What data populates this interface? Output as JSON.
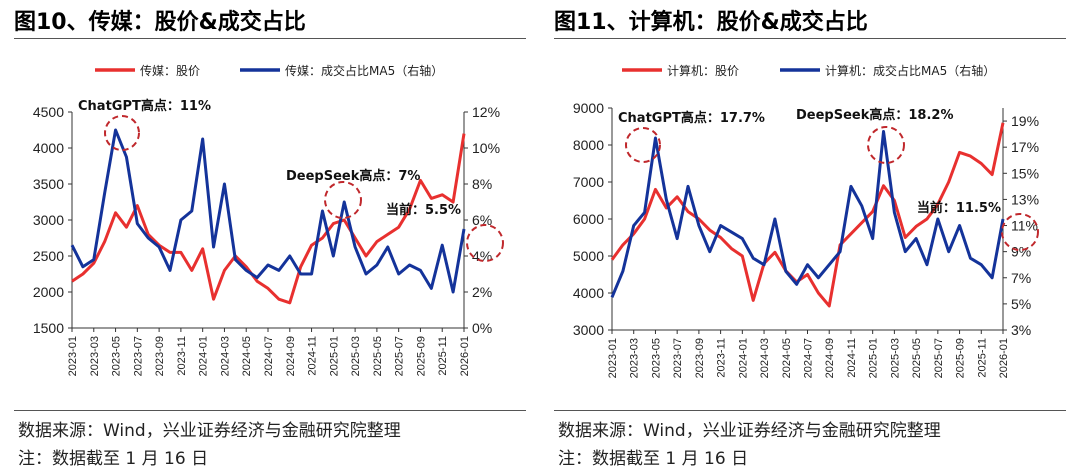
{
  "colors": {
    "stock": "#e8302f",
    "share": "#14339a",
    "annotation": "#c0282c"
  },
  "chart_data": [
    {
      "type": "line",
      "title": "图10、传媒：股价&成交占比",
      "x_ticks": [
        "2023-01",
        "2023-03",
        "2023-05",
        "2023-07",
        "2023-09",
        "2023-11",
        "2024-01",
        "2024-03",
        "2024-05",
        "2024-07",
        "2024-09",
        "2024-11",
        "2025-01",
        "2025-03",
        "2025-05",
        "2025-07",
        "2025-09",
        "2025-11",
        "2026-01"
      ],
      "x": [
        "2023-01",
        "2023-02",
        "2023-03",
        "2023-04",
        "2023-05",
        "2023-06",
        "2023-07",
        "2023-08",
        "2023-09",
        "2023-10",
        "2023-11",
        "2023-12",
        "2024-01",
        "2024-02",
        "2024-03",
        "2024-04",
        "2024-05",
        "2024-06",
        "2024-07",
        "2024-08",
        "2024-09",
        "2024-10",
        "2024-11",
        "2024-12",
        "2025-01",
        "2025-02",
        "2025-03",
        "2025-04",
        "2025-05",
        "2025-06",
        "2025-07",
        "2025-08",
        "2025-09",
        "2025-10",
        "2025-11",
        "2025-12",
        "2026-01"
      ],
      "left_axis": {
        "ylim": [
          1500,
          4500
        ],
        "ticks": [
          "1500",
          "2000",
          "2500",
          "3000",
          "3500",
          "4000",
          "4500"
        ]
      },
      "right_axis": {
        "ylim": [
          0,
          12
        ],
        "ticks": [
          "0%",
          "2%",
          "4%",
          "6%",
          "8%",
          "10%",
          "12%"
        ]
      },
      "series": [
        {
          "name": "传媒：股价",
          "axis": "left",
          "values": [
            2150,
            2250,
            2400,
            2700,
            3100,
            2900,
            3200,
            2800,
            2650,
            2550,
            2550,
            2300,
            2600,
            1900,
            2300,
            2500,
            2350,
            2150,
            2050,
            1900,
            1850,
            2350,
            2650,
            2750,
            2950,
            3000,
            2750,
            2500,
            2700,
            2800,
            2900,
            3150,
            3550,
            3300,
            3350,
            3250,
            4200
          ]
        },
        {
          "name": "传媒：成交占比MA5（右轴）",
          "axis": "right",
          "values": [
            4.6,
            3.4,
            3.8,
            7.5,
            11.0,
            9.5,
            5.8,
            5.0,
            4.5,
            3.2,
            6.0,
            6.5,
            10.5,
            4.5,
            8.0,
            3.8,
            3.2,
            2.8,
            3.5,
            3.2,
            4.0,
            3.0,
            3.0,
            6.5,
            4.0,
            7.0,
            4.5,
            3.0,
            3.5,
            4.5,
            3.0,
            3.5,
            3.2,
            2.2,
            4.6,
            2.0,
            5.5
          ]
        }
      ],
      "annotations": [
        "ChatGPT高点：11%",
        "DeepSeek高点：7%",
        "当前：5.5%"
      ]
    },
    {
      "type": "line",
      "title": "图11、计算机：股价&成交占比",
      "x_ticks": [
        "2023-01",
        "2023-03",
        "2023-05",
        "2023-07",
        "2023-09",
        "2023-11",
        "2024-01",
        "2024-03",
        "2024-05",
        "2024-07",
        "2024-09",
        "2024-11",
        "2025-01",
        "2025-03",
        "2025-05",
        "2025-07",
        "2025-09",
        "2025-11",
        "2026-01"
      ],
      "x": [
        "2023-01",
        "2023-02",
        "2023-03",
        "2023-04",
        "2023-05",
        "2023-06",
        "2023-07",
        "2023-08",
        "2023-09",
        "2023-10",
        "2023-11",
        "2023-12",
        "2024-01",
        "2024-02",
        "2024-03",
        "2024-04",
        "2024-05",
        "2024-06",
        "2024-07",
        "2024-08",
        "2024-09",
        "2024-10",
        "2024-11",
        "2024-12",
        "2025-01",
        "2025-02",
        "2025-03",
        "2025-04",
        "2025-05",
        "2025-06",
        "2025-07",
        "2025-08",
        "2025-09",
        "2025-10",
        "2025-11",
        "2025-12",
        "2026-01"
      ],
      "left_axis": {
        "ylim": [
          3000,
          9000
        ],
        "ticks": [
          "3000",
          "4000",
          "5000",
          "6000",
          "7000",
          "8000",
          "9000"
        ]
      },
      "right_axis": {
        "ylim": [
          3,
          20
        ],
        "ticks": [
          "3%",
          "5%",
          "7%",
          "9%",
          "11%",
          "13%",
          "15%",
          "17%",
          "19%"
        ]
      },
      "series": [
        {
          "name": "计算机：股价",
          "axis": "left",
          "values": [
            4900,
            5300,
            5600,
            6000,
            6800,
            6300,
            6600,
            6200,
            6000,
            5700,
            5500,
            5200,
            5000,
            3800,
            4800,
            5100,
            4600,
            4300,
            4500,
            4000,
            3650,
            5300,
            5600,
            5900,
            6200,
            6900,
            6500,
            5500,
            5800,
            6000,
            6400,
            7000,
            7800,
            7700,
            7500,
            7200,
            8600
          ]
        },
        {
          "name": "计算机：成交占比MA5（右轴）",
          "axis": "right",
          "values": [
            5.5,
            7.5,
            11.0,
            12.0,
            17.7,
            13.0,
            10.0,
            14.0,
            11.0,
            9.0,
            11.0,
            10.5,
            10.0,
            8.5,
            8.0,
            11.5,
            7.5,
            6.5,
            8.0,
            7.0,
            8.0,
            9.0,
            14.0,
            12.5,
            10.0,
            18.2,
            12.0,
            9.0,
            10.0,
            8.0,
            11.5,
            9.0,
            11.0,
            8.5,
            8.0,
            7.0,
            11.5
          ]
        }
      ],
      "annotations": [
        "ChatGPT高点：17.7%",
        "DeepSeek高点：18.2%",
        "当前：11.5%"
      ]
    }
  ],
  "source": {
    "left": "数据来源：Wind，兴业证券经济与金融研究院整理",
    "right": "数据来源：Wind，兴业证券经济与金融研究院整理"
  },
  "note": {
    "left": "注：数据截至 1 月 16 日",
    "right": "注：数据截至 1 月 16 日"
  }
}
